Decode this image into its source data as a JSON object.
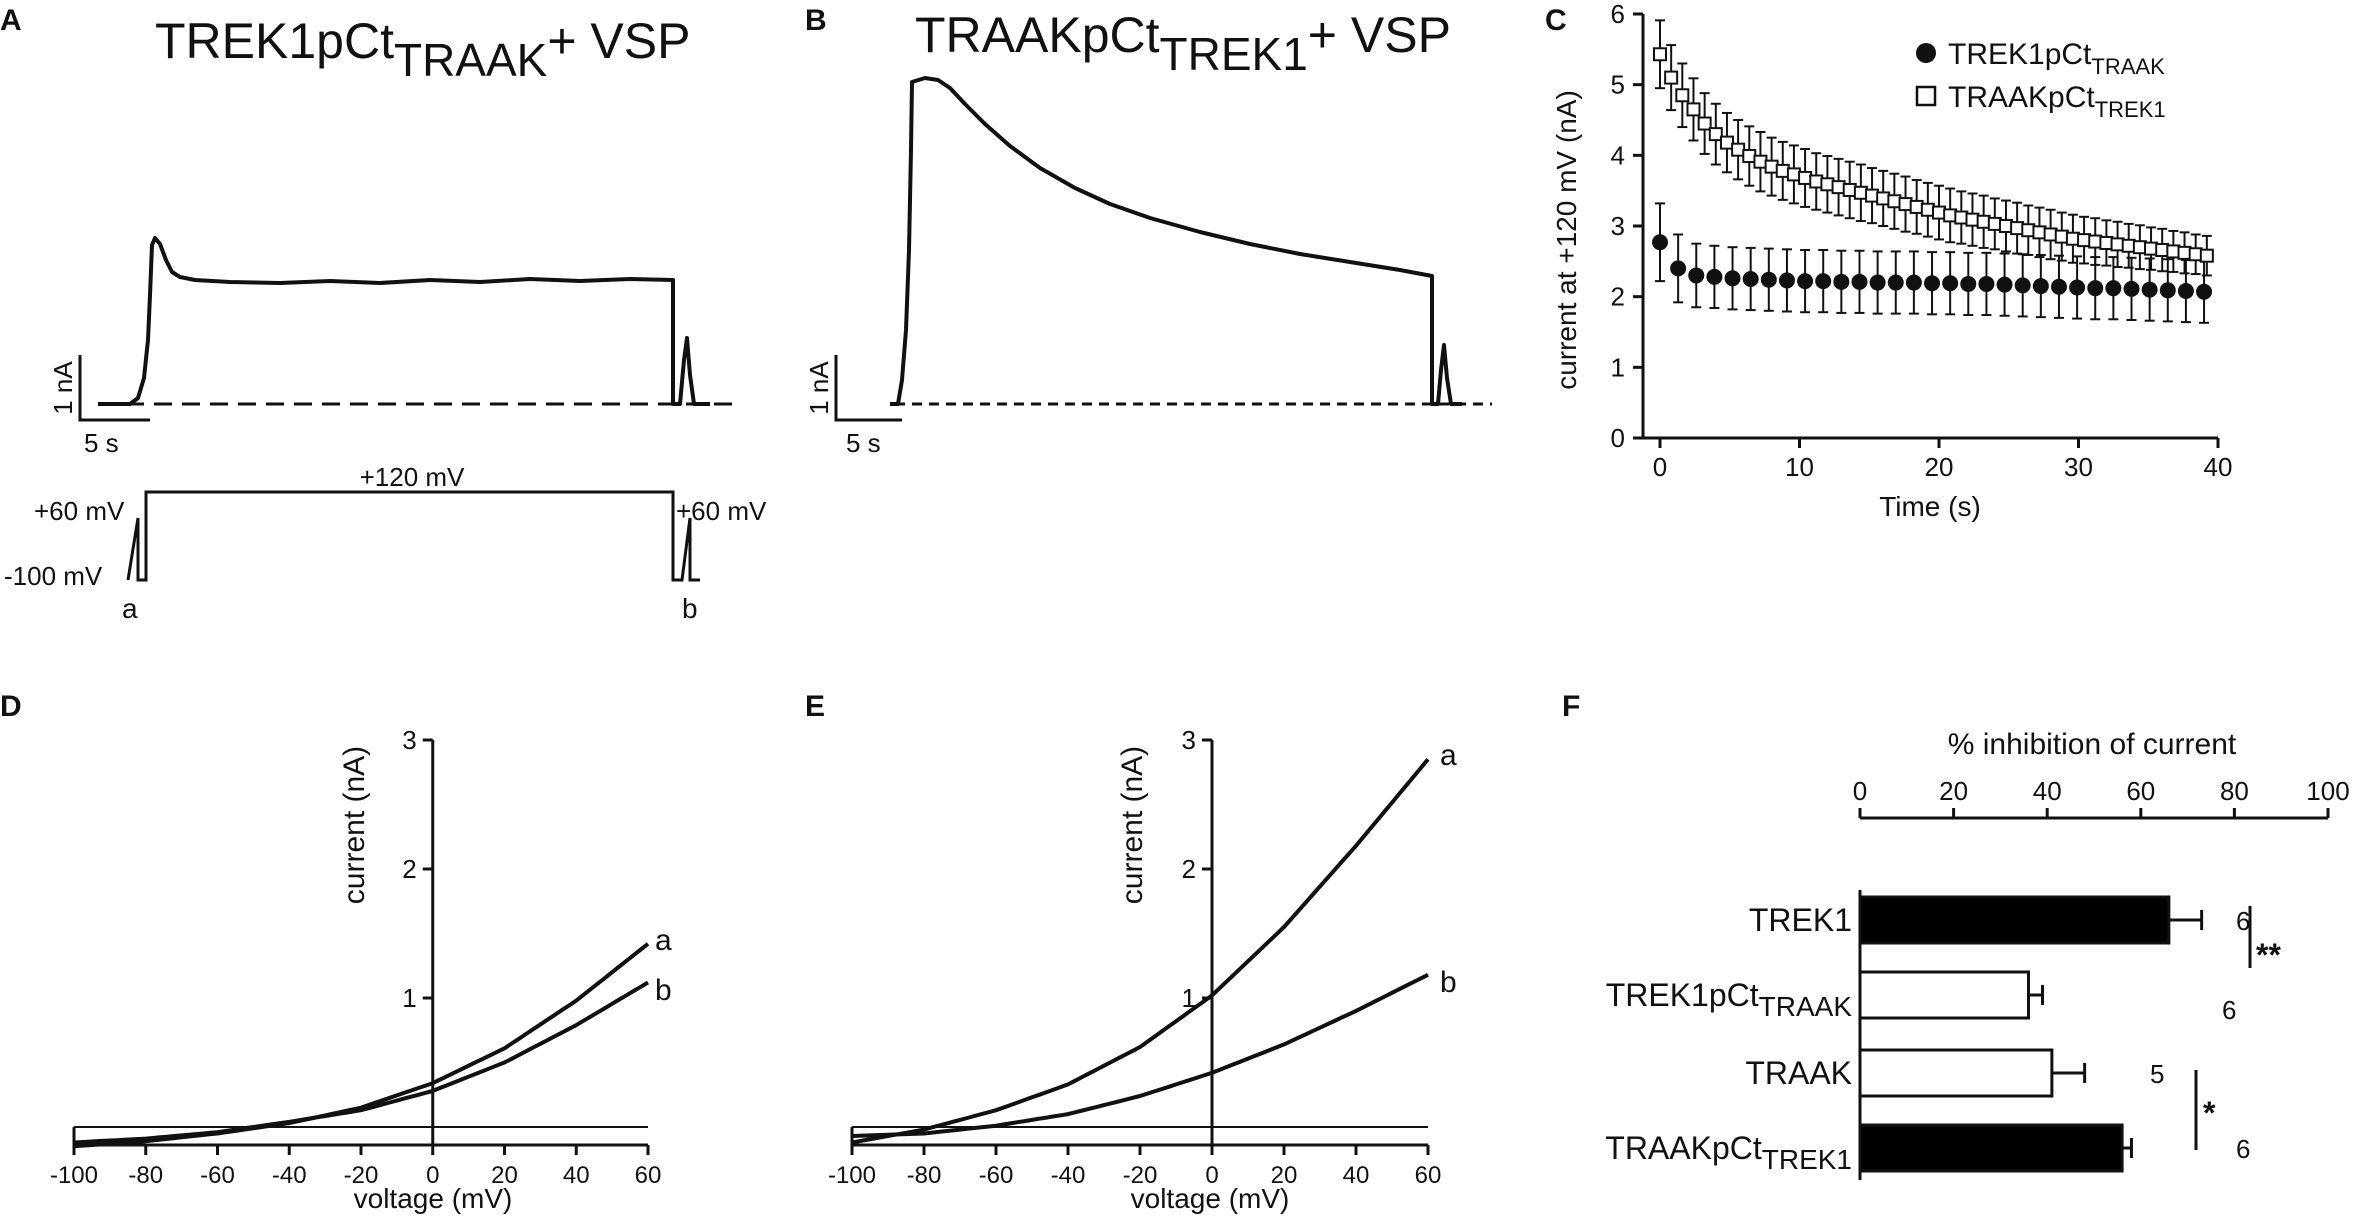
{
  "figure": {
    "panels": {
      "A": {
        "letter": "A",
        "title_main": "TREK1pCt",
        "title_sub": "TRAAK",
        "title_rest": "+ VSP",
        "scale_current": "1 nA",
        "scale_time": "5 s",
        "protocol": {
          "step_label": "+120 mV",
          "pre_label": "+60 mV",
          "post_label": "+60 mV",
          "hold_label": "-100 mV",
          "ramp_a": "a",
          "ramp_b": "b"
        }
      },
      "B": {
        "letter": "B",
        "title_main": "TRAAKpCt",
        "title_sub": "TREK1",
        "title_rest": "+ VSP",
        "scale_current": "1 nA",
        "scale_time": "5 s"
      },
      "C": {
        "letter": "C"
      },
      "D": {
        "letter": "D",
        "curve_a_label": "a",
        "curve_b_label": "b"
      },
      "E": {
        "letter": "E",
        "curve_a_label": "a",
        "curve_b_label": "b"
      },
      "F": {
        "letter": "F",
        "sig_top": "**",
        "sig_bottom": "*"
      }
    }
  },
  "chart_data": [
    {
      "panel": "C",
      "type": "scatter",
      "xlabel": "Time (s)",
      "ylabel": "current at +120 mV (nA)",
      "xlim": [
        0,
        40
      ],
      "ylim": [
        0,
        6
      ],
      "xticks": [
        0,
        10,
        20,
        30,
        40
      ],
      "yticks": [
        0,
        1,
        2,
        3,
        4,
        5,
        6
      ],
      "series": [
        {
          "name_main": "TREK1pCt",
          "name_sub": "TRAAK",
          "marker": "filled-circle",
          "x": [
            0,
            1.3,
            2.6,
            3.9,
            5.2,
            6.5,
            7.8,
            9.1,
            10.4,
            11.7,
            13,
            14.3,
            15.6,
            16.9,
            18.2,
            19.5,
            20.8,
            22.1,
            23.4,
            24.7,
            26,
            27.3,
            28.6,
            29.9,
            31.2,
            32.5,
            33.8,
            35.1,
            36.4,
            37.7,
            39
          ],
          "y": [
            2.77,
            2.4,
            2.3,
            2.28,
            2.26,
            2.25,
            2.24,
            2.23,
            2.22,
            2.22,
            2.21,
            2.21,
            2.2,
            2.2,
            2.2,
            2.19,
            2.19,
            2.18,
            2.18,
            2.17,
            2.16,
            2.15,
            2.14,
            2.13,
            2.12,
            2.12,
            2.11,
            2.1,
            2.09,
            2.08,
            2.07
          ],
          "err": [
            0.55,
            0.48,
            0.45,
            0.44,
            0.44,
            0.44,
            0.44,
            0.44,
            0.44,
            0.44,
            0.44,
            0.44,
            0.44,
            0.44,
            0.44,
            0.44,
            0.44,
            0.44,
            0.44,
            0.44,
            0.44,
            0.44,
            0.44,
            0.44,
            0.44,
            0.44,
            0.44,
            0.44,
            0.44,
            0.44,
            0.44
          ]
        },
        {
          "name_main": "TRAAKpCt",
          "name_sub": "TREK1",
          "marker": "open-square",
          "x": [
            0,
            0.8,
            1.6,
            2.4,
            3.2,
            4,
            4.8,
            5.6,
            6.4,
            7.2,
            8,
            8.8,
            9.6,
            10.4,
            11.2,
            12,
            12.8,
            13.6,
            14.4,
            15.2,
            16,
            16.8,
            17.6,
            18.4,
            19.2,
            20,
            20.8,
            21.6,
            22.4,
            23.2,
            24,
            24.8,
            25.6,
            26.4,
            27.2,
            28,
            28.8,
            29.6,
            30.4,
            31.2,
            32,
            32.8,
            33.6,
            34.4,
            35.2,
            36,
            36.8,
            37.6,
            38.4,
            39.2
          ],
          "y": [
            5.43,
            5.1,
            4.85,
            4.65,
            4.45,
            4.3,
            4.18,
            4.08,
            3.99,
            3.91,
            3.84,
            3.78,
            3.73,
            3.68,
            3.63,
            3.59,
            3.55,
            3.51,
            3.47,
            3.43,
            3.39,
            3.35,
            3.31,
            3.27,
            3.23,
            3.19,
            3.15,
            3.12,
            3.09,
            3.06,
            3.03,
            3.0,
            2.97,
            2.94,
            2.91,
            2.88,
            2.85,
            2.82,
            2.8,
            2.78,
            2.76,
            2.74,
            2.72,
            2.7,
            2.68,
            2.66,
            2.64,
            2.62,
            2.6,
            2.58
          ],
          "err": [
            0.48,
            0.46,
            0.45,
            0.44,
            0.43,
            0.43,
            0.42,
            0.42,
            0.42,
            0.42,
            0.41,
            0.41,
            0.41,
            0.41,
            0.4,
            0.4,
            0.4,
            0.4,
            0.4,
            0.39,
            0.39,
            0.39,
            0.39,
            0.38,
            0.38,
            0.38,
            0.38,
            0.37,
            0.37,
            0.37,
            0.36,
            0.36,
            0.36,
            0.35,
            0.35,
            0.35,
            0.34,
            0.34,
            0.33,
            0.33,
            0.32,
            0.32,
            0.31,
            0.31,
            0.3,
            0.3,
            0.29,
            0.29,
            0.28,
            0.28
          ]
        }
      ]
    },
    {
      "panel": "D",
      "type": "line",
      "xlabel": "voltage (mV)",
      "ylabel": "current (nA)",
      "xlim": [
        -100,
        60
      ],
      "ylim": [
        0,
        3
      ],
      "xticks": [
        -100,
        -80,
        -60,
        -40,
        -20,
        0,
        20,
        40,
        60
      ],
      "yticks": [
        1,
        2,
        3
      ],
      "series": [
        {
          "name": "a",
          "x": [
            -100,
            -80,
            -60,
            -40,
            -20,
            0,
            20,
            40,
            60
          ],
          "y": [
            -0.15,
            -0.11,
            -0.05,
            0.03,
            0.15,
            0.34,
            0.61,
            0.98,
            1.42
          ]
        },
        {
          "name": "b",
          "x": [
            -100,
            -80,
            -60,
            -40,
            -20,
            0,
            20,
            40,
            60
          ],
          "y": [
            -0.12,
            -0.09,
            -0.04,
            0.04,
            0.13,
            0.28,
            0.5,
            0.79,
            1.12
          ]
        }
      ]
    },
    {
      "panel": "E",
      "type": "line",
      "xlabel": "voltage (mV)",
      "ylabel": "current (nA)",
      "xlim": [
        -100,
        60
      ],
      "ylim": [
        0,
        3
      ],
      "xticks": [
        -100,
        -80,
        -60,
        -40,
        -20,
        0,
        20,
        40,
        60
      ],
      "yticks": [
        1,
        2,
        3
      ],
      "series": [
        {
          "name": "a",
          "x": [
            -100,
            -80,
            -60,
            -40,
            -20,
            0,
            20,
            40,
            60
          ],
          "y": [
            -0.12,
            -0.02,
            0.13,
            0.33,
            0.62,
            1.02,
            1.55,
            2.18,
            2.85
          ]
        },
        {
          "name": "b",
          "x": [
            -100,
            -80,
            -60,
            -40,
            -20,
            0,
            20,
            40,
            60
          ],
          "y": [
            -0.07,
            -0.05,
            0.01,
            0.1,
            0.24,
            0.42,
            0.64,
            0.9,
            1.18
          ]
        }
      ]
    },
    {
      "panel": "F",
      "type": "bar",
      "orientation": "horizontal",
      "xlabel": "% inhibition of current",
      "xlim": [
        0,
        100
      ],
      "xticks": [
        0,
        20,
        40,
        60,
        80,
        100
      ],
      "bars": [
        {
          "label_main": "TREK1",
          "label_sub": "",
          "value": 66,
          "err": 7,
          "n": "6",
          "fill": "#000000"
        },
        {
          "label_main": "TREK1pCt",
          "label_sub": "TRAAK",
          "value": 36,
          "err": 3,
          "n": "6",
          "fill": "#ffffff"
        },
        {
          "label_main": "TRAAK",
          "label_sub": "",
          "value": 41,
          "err": 7,
          "n": "5",
          "fill": "#ffffff"
        },
        {
          "label_main": "TRAAKpCt",
          "label_sub": "TREK1",
          "value": 56,
          "err": 2,
          "n": "6",
          "fill": "#000000"
        }
      ]
    }
  ]
}
